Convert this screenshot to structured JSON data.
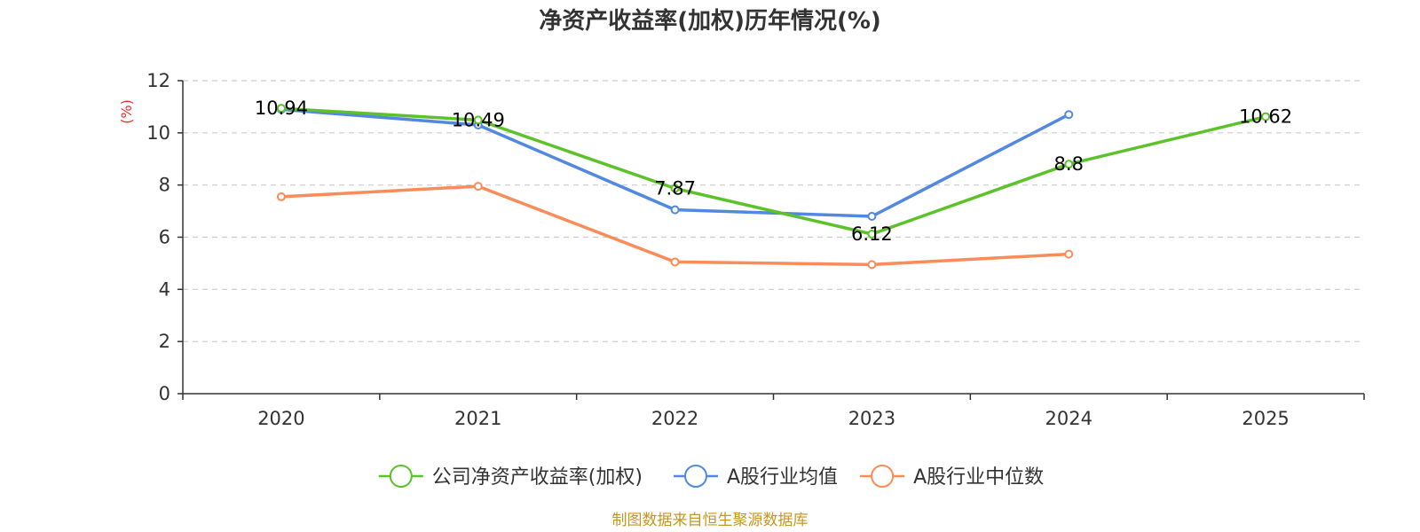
{
  "chart_data": {
    "type": "line",
    "title": "净资产收益率(加权)历年情况(%)",
    "ylabel": "(%)",
    "ylim": [
      0,
      12
    ],
    "yticks": [
      0,
      2,
      4,
      6,
      8,
      10,
      12
    ],
    "categories": [
      "2020",
      "2021",
      "2022",
      "2023",
      "2024",
      "2025"
    ],
    "grid": true,
    "legend_position": "bottom",
    "series": [
      {
        "name": "公司净资产收益率(加权)",
        "color": "#5cc229",
        "values": [
          10.94,
          10.49,
          7.87,
          6.12,
          8.8,
          10.62
        ],
        "labels": [
          "10.94",
          "10.49",
          "7.87",
          "6.12",
          "8.8",
          "10.62"
        ]
      },
      {
        "name": "A股行业均值",
        "color": "#5288e0",
        "values": [
          10.9,
          10.3,
          7.05,
          6.8,
          10.7,
          null
        ]
      },
      {
        "name": "A股行业中位数",
        "color": "#fa8c5a",
        "values": [
          7.55,
          7.95,
          5.05,
          4.95,
          5.35,
          null
        ]
      }
    ]
  },
  "footer": {
    "source": "制图数据来自恒生聚源数据库"
  }
}
